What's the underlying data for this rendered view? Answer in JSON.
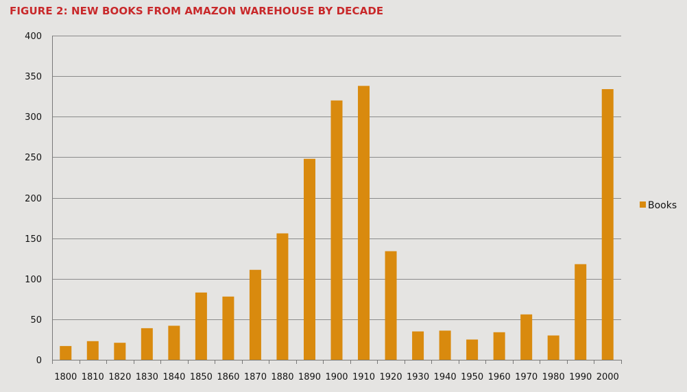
{
  "colors": {
    "title": "#c8282a",
    "bar": "#d98a0e",
    "grid": "#8a8a8a",
    "axis": "#777777",
    "background": "#e5e4e2",
    "text": "#111111"
  },
  "chart_data": {
    "type": "bar",
    "title": "FIGURE 2: NEW BOOKS FROM AMAZON WAREHOUSE BY DECADE",
    "xlabel": "",
    "ylabel": "",
    "ylim": [
      0,
      400
    ],
    "yticks": [
      0,
      50,
      100,
      150,
      200,
      250,
      300,
      350,
      400
    ],
    "grid": true,
    "legend_position": "right",
    "categories": [
      "1800",
      "1810",
      "1820",
      "1830",
      "1840",
      "1850",
      "1860",
      "1870",
      "1880",
      "1890",
      "1900",
      "1910",
      "1920",
      "1930",
      "1940",
      "1950",
      "1960",
      "1970",
      "1980",
      "1990",
      "2000"
    ],
    "series": [
      {
        "name": "Books",
        "values": [
          17,
          23,
          21,
          39,
          42,
          83,
          78,
          111,
          156,
          248,
          320,
          338,
          134,
          35,
          36,
          25,
          34,
          56,
          30,
          118,
          334
        ]
      }
    ]
  }
}
